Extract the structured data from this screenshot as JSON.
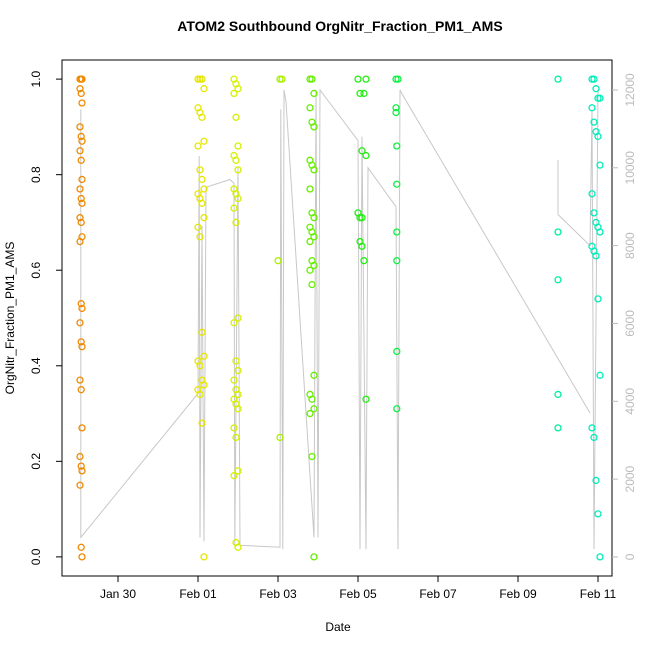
{
  "chart_data": {
    "type": "scatter",
    "title": "ATOM2 Southbound OrgNitr_Fraction_PM1_AMS",
    "x_label": "Date",
    "y_label": "OrgNitr_Fraction_PM1_AMS",
    "xlim": [
      28.6,
      42.35
    ],
    "ylim": [
      -0.04,
      1.04
    ],
    "y2lim": [
      -490,
      12770
    ],
    "xticks": [
      {
        "value": 30,
        "label": "Jan 30"
      },
      {
        "value": 32,
        "label": "Feb 01"
      },
      {
        "value": 34,
        "label": "Feb 03"
      },
      {
        "value": 36,
        "label": "Feb 05"
      },
      {
        "value": 38,
        "label": "Feb 07"
      },
      {
        "value": 40,
        "label": "Feb 09"
      },
      {
        "value": 42,
        "label": "Feb 11"
      }
    ],
    "yticks": [
      {
        "value": 0,
        "label": "0.0"
      },
      {
        "value": 0.2,
        "label": "0.2"
      },
      {
        "value": 0.4,
        "label": "0.4"
      },
      {
        "value": 0.6,
        "label": "0.6"
      },
      {
        "value": 0.8,
        "label": "0.8"
      },
      {
        "value": 1,
        "label": "1.0"
      }
    ],
    "y2ticks": [
      0,
      2000,
      4000,
      6000,
      8000,
      10000,
      12000
    ],
    "series": [
      {
        "color": "#ef8a00",
        "x": [
          29.05,
          29.08,
          29.1,
          29.05,
          29.08,
          29.1,
          29.05,
          29.08,
          29.1,
          29.05,
          29.08,
          29.1,
          29.05,
          29.08,
          29.1,
          29.05,
          29.08,
          29.1,
          29.05,
          29.08,
          29.1,
          29.05,
          29.08,
          29.1,
          29.05,
          29.08,
          29.1,
          29.05,
          29.08,
          29.1,
          29.05,
          29.08,
          29.1
        ],
        "values": [
          1,
          1,
          1,
          0.98,
          0.97,
          0.95,
          0.9,
          0.88,
          0.87,
          0.85,
          0.83,
          0.79,
          0.77,
          0.75,
          0.74,
          0.71,
          0.7,
          0.67,
          0.66,
          0.53,
          0.52,
          0.49,
          0.45,
          0.44,
          0.37,
          0.35,
          0.27,
          0.21,
          0.19,
          0.18,
          0.15,
          0.02,
          0
        ]
      },
      {
        "color": "#e6e600",
        "x": [
          32.0,
          32.05,
          32.1,
          32.15,
          32.0,
          32.05,
          32.1,
          32.15,
          32.0,
          32.05,
          32.1,
          32.15,
          32.0,
          32.05,
          32.1,
          32.15,
          32.0,
          32.05,
          32.1,
          32.15,
          32.0,
          32.05,
          32.1,
          32.15,
          32.0,
          32.05,
          32.1,
          32.15
        ],
        "values": [
          1,
          1,
          1,
          0.98,
          0.94,
          0.93,
          0.92,
          0.87,
          0.86,
          0.81,
          0.79,
          0.77,
          0.76,
          0.75,
          0.74,
          0.71,
          0.69,
          0.67,
          0.47,
          0.42,
          0.41,
          0.4,
          0.37,
          0.36,
          0.35,
          0.34,
          0.28,
          0
        ]
      },
      {
        "color": "#d6ef00",
        "x": [
          32.9,
          32.95,
          33.0,
          32.9,
          32.95,
          33.0,
          32.9,
          32.95,
          33.0,
          32.9,
          32.95,
          33.0,
          32.9,
          32.95,
          33.0,
          32.9,
          32.95,
          33.0,
          32.9,
          32.95,
          33.0,
          32.9,
          32.95,
          33.0,
          32.9,
          32.95,
          33.0,
          32.9,
          32.95,
          33.0
        ],
        "values": [
          1,
          0.99,
          0.98,
          0.97,
          0.92,
          0.86,
          0.84,
          0.83,
          0.81,
          0.77,
          0.76,
          0.75,
          0.73,
          0.7,
          0.5,
          0.49,
          0.41,
          0.39,
          0.37,
          0.35,
          0.34,
          0.33,
          0.32,
          0.31,
          0.27,
          0.25,
          0.18,
          0.17,
          0.03,
          0.02
        ]
      },
      {
        "color": "#aaf000",
        "x": [
          34.05,
          34.1,
          34.0,
          34.05
        ],
        "values": [
          1,
          1,
          0.62,
          0.25
        ]
      },
      {
        "color": "#66ee00",
        "x": [
          34.8,
          34.85,
          34.9,
          34.8,
          34.85,
          34.9,
          34.8,
          34.85,
          34.9,
          34.8,
          34.85,
          34.9,
          34.8,
          34.85,
          34.9,
          34.8,
          34.85,
          34.9,
          34.8,
          34.85,
          34.9,
          34.8,
          34.85,
          34.9,
          34.8,
          34.85,
          34.9
        ],
        "values": [
          1,
          1,
          0.97,
          0.94,
          0.91,
          0.9,
          0.83,
          0.82,
          0.81,
          0.77,
          0.72,
          0.71,
          0.69,
          0.68,
          0.67,
          0.66,
          0.62,
          0.61,
          0.6,
          0.57,
          0.38,
          0.34,
          0.33,
          0.31,
          0.3,
          0.21,
          0
        ]
      },
      {
        "color": "#22ee11",
        "x": [
          36.0,
          36.2,
          36.05,
          36.15,
          36.1,
          36.2,
          36.0,
          36.05,
          36.1,
          36.05,
          36.1,
          36.15,
          36.2
        ],
        "values": [
          1,
          1,
          0.97,
          0.97,
          0.85,
          0.84,
          0.72,
          0.71,
          0.71,
          0.66,
          0.65,
          0.62,
          0.33
        ]
      },
      {
        "color": "#11ee44",
        "x": [
          36.95,
          37.0,
          36.95,
          36.95,
          36.97,
          36.97,
          36.97,
          36.97,
          36.97,
          36.97
        ],
        "values": [
          1,
          1,
          0.94,
          0.93,
          0.86,
          0.78,
          0.68,
          0.62,
          0.43,
          0.31
        ]
      },
      {
        "color": "#00eea0",
        "x": [
          41.0,
          41.0,
          41.0,
          41.0,
          41.0
        ],
        "values": [
          1,
          0.68,
          0.58,
          0.34,
          0.27
        ]
      },
      {
        "color": "#00eebb",
        "x": [
          41.85,
          41.9,
          41.95,
          42.0,
          42.05,
          41.85,
          41.9,
          41.95,
          42.0,
          42.05,
          41.85,
          41.9,
          41.95,
          42.0,
          42.05,
          41.85,
          41.9,
          41.95,
          42.0,
          42.05,
          41.85,
          41.9,
          41.95,
          42.0,
          42.05
        ],
        "values": [
          1,
          1,
          0.98,
          0.96,
          0.96,
          0.94,
          0.91,
          0.89,
          0.88,
          0.82,
          0.76,
          0.72,
          0.7,
          0.69,
          0.68,
          0.65,
          0.64,
          0.63,
          0.54,
          0.38,
          0.27,
          0.25,
          0.16,
          0.09,
          0
        ]
      },
      {
        "type": "line",
        "axis": "y2",
        "color": "#c8c8c8",
        "x": [
          29.07,
          29.07,
          32.0,
          32.03,
          32.05,
          32.1,
          32.15,
          32.2,
          32.8,
          32.9,
          32.92,
          33.0,
          33.05,
          34.05,
          34.07,
          34.12,
          34.15,
          34.2,
          34.9,
          34.95,
          35.0,
          35.05,
          36.0,
          36.05,
          36.1,
          36.2,
          36.25,
          36.95,
          37.0,
          37.05,
          37.1,
          41.8,
          41.0,
          41.0,
          41.0,
          41.8,
          41.85,
          41.9,
          42.0
        ],
        "values": [
          11500,
          500,
          4200,
          10300,
          500,
          8500,
          400,
          9500,
          9700,
          9600,
          300,
          10000,
          300,
          250,
          11500,
          200,
          12000,
          11700,
          500,
          12000,
          500,
          12000,
          10700,
          200,
          10800,
          200,
          10000,
          9000,
          200,
          12000,
          11900,
          3700,
          null,
          10200,
          8800,
          8000,
          11500,
          200,
          12000
        ]
      }
    ]
  }
}
